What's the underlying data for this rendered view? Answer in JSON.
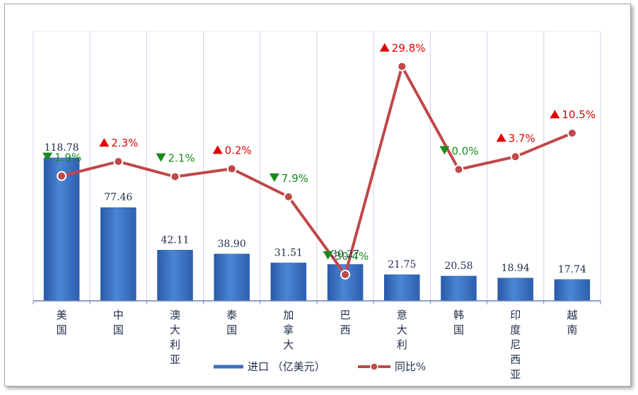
{
  "chart_data": {
    "type": "bar",
    "categories": [
      "美国",
      "中国",
      "澳大利亚",
      "泰国",
      "加拿大",
      "巴西",
      "意大利",
      "韩国",
      "印度尼西亚",
      "越南"
    ],
    "series": [
      {
        "name": "进口 （亿美元）",
        "type": "bar",
        "values": [
          118.78,
          77.46,
          42.11,
          38.9,
          31.51,
          30.27,
          21.75,
          20.58,
          18.94,
          17.74
        ],
        "labels": [
          "118.78",
          "77.46",
          "42.11",
          "38.90",
          "31.51",
          "30.27",
          "21.75",
          "20.58",
          "18.94",
          "17.74"
        ]
      },
      {
        "name": "同比%",
        "type": "line",
        "values": [
          -1.9,
          2.3,
          -2.1,
          0.2,
          -7.9,
          -30.4,
          29.8,
          0.0,
          3.7,
          10.5
        ],
        "labels": [
          "1.9%",
          "2.3%",
          "2.1%",
          "0.2%",
          "7.9%",
          "30.4%",
          "29.8%",
          "0.0%",
          "3.7%",
          "10.5%"
        ],
        "direction": [
          "down",
          "up",
          "down",
          "up",
          "down",
          "down",
          "up",
          "down",
          "up",
          "up"
        ]
      }
    ],
    "ylim_bar": [
      0,
      224
    ],
    "ylim_line": [
      -38,
      40
    ],
    "grid": "vertical",
    "legend_position": "bottom",
    "colors": {
      "bar": "#3a6fc0",
      "line": "#c0474a",
      "up": "#e00000",
      "down": "#1a8a1a"
    }
  }
}
